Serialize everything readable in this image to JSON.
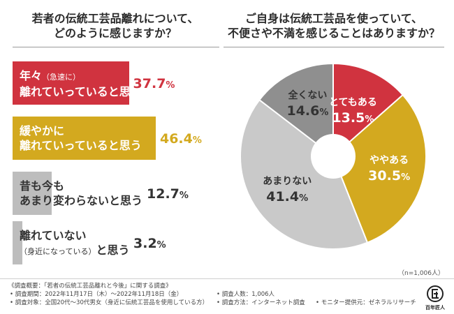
{
  "colors": {
    "red": "#d0333f",
    "yellow": "#d3a91f",
    "light_gray": "#bdbdbd",
    "dark_gray": "#8f8f8f",
    "mid_gray": "#c9c9c9"
  },
  "chart_data": [
    {
      "type": "bar",
      "title_lines": [
        "若者の伝統工芸品離れについて、",
        "どのように感じますか？"
      ],
      "unit": "%",
      "series": [
        {
          "label_lines": [
            "年々",
            "離れていっていると思う"
          ],
          "note": "（急速に）",
          "value": 37.7,
          "color": "#d0333f",
          "text_color": "#ffffff",
          "value_color": "#d0333f"
        },
        {
          "label_lines": [
            "緩やかに",
            "離れていっていると思う"
          ],
          "note": "",
          "value": 46.4,
          "color": "#d3a91f",
          "text_color": "#ffffff",
          "value_color": "#d3a91f"
        },
        {
          "label_lines": [
            "昔も今も",
            "あまり変わらないと思う"
          ],
          "note": "",
          "value": 12.7,
          "color": "#bdbdbd",
          "text_color": "#333333",
          "value_color": "#333333"
        },
        {
          "label_lines": [
            "離れていない",
            "と思う"
          ],
          "note": "（身近になっている）",
          "value": 3.2,
          "color": "#bdbdbd",
          "text_color": "#333333",
          "value_color": "#333333"
        }
      ]
    },
    {
      "type": "pie",
      "title_lines": [
        "ご自身は伝統工芸品を使っていて、",
        "不便さや不満を感じることはありますか？"
      ],
      "unit": "%",
      "slices": [
        {
          "label": "とてもある",
          "value": 13.5,
          "color": "#d0333f",
          "text_color": "#ffffff"
        },
        {
          "label": "ややある",
          "value": 30.5,
          "color": "#d3a91f",
          "text_color": "#ffffff"
        },
        {
          "label": "あまりない",
          "value": 41.4,
          "color": "#c9c9c9",
          "text_color": "#333333"
        },
        {
          "label": "全くない",
          "value": 14.6,
          "color": "#8f8f8f",
          "text_color": "#333333"
        }
      ],
      "sample_note": "（n=1,006人）"
    }
  ],
  "footer": {
    "overview": "《調査概要：「若者の伝統工芸品離れと今後」に関する調査》",
    "period": "• 調査期間：2022年11月17日（木）〜2022年11月18日（金）",
    "count": "• 調査人数：1,006人",
    "target": "• 調査対象：全国20代〜30代男女（身近に伝統工芸品を使用している方）",
    "method": "• 調査方法：インターネット調査",
    "provider": "• モニター提供元：ゼネラルリサーチ",
    "logo_text": "百年匠人"
  }
}
